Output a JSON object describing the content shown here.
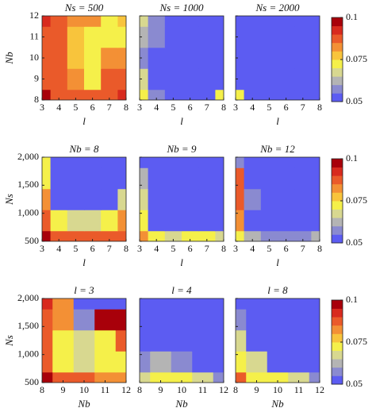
{
  "chart_data": [
    {
      "type": "contour",
      "title": "Ns = 500",
      "xlabel": "l",
      "ylabel": "Nb",
      "x": [
        3,
        4,
        5,
        6,
        7,
        8
      ],
      "y": [
        8,
        9,
        10,
        11,
        12
      ],
      "xlim": [
        3,
        8
      ],
      "ylim": [
        8,
        12
      ],
      "xticks": [
        3,
        4,
        5,
        6,
        7,
        8
      ],
      "yticks": [
        8,
        9,
        10,
        11,
        12
      ],
      "z": [
        [
          0.095,
          0.09,
          0.088,
          0.085,
          0.09,
          0.092
        ],
        [
          0.09,
          0.085,
          0.08,
          0.075,
          0.085,
          0.085
        ],
        [
          0.088,
          0.09,
          0.078,
          0.075,
          0.08,
          0.08
        ],
        [
          0.09,
          0.085,
          0.078,
          0.075,
          0.07,
          0.075
        ],
        [
          0.092,
          0.088,
          0.082,
          0.08,
          0.075,
          0.078
        ]
      ]
    },
    {
      "type": "contour",
      "title": "Ns = 1000",
      "xlabel": "l",
      "x": [
        3,
        4,
        5,
        6,
        7,
        8
      ],
      "y": [
        8,
        9,
        10,
        11,
        12
      ],
      "xlim": [
        3,
        8
      ],
      "ylim": [
        8,
        12
      ],
      "xticks": [
        3,
        4,
        5,
        6,
        7,
        8
      ],
      "yticks": [
        8,
        9,
        10,
        11,
        12
      ],
      "z": [
        [
          0.075,
          0.06,
          0.052,
          0.05,
          0.055,
          0.07
        ],
        [
          0.065,
          0.055,
          0.05,
          0.05,
          0.05,
          0.055
        ],
        [
          0.06,
          0.055,
          0.05,
          0.05,
          0.05,
          0.05
        ],
        [
          0.062,
          0.058,
          0.05,
          0.05,
          0.05,
          0.05
        ],
        [
          0.065,
          0.06,
          0.055,
          0.05,
          0.05,
          0.05
        ]
      ]
    },
    {
      "type": "contour",
      "title": "Ns = 2000",
      "xlabel": "l",
      "x": [
        3,
        4,
        5,
        6,
        7,
        8
      ],
      "y": [
        8,
        9,
        10,
        11,
        12
      ],
      "xlim": [
        3,
        8
      ],
      "ylim": [
        8,
        12
      ],
      "xticks": [
        3,
        4,
        5,
        6,
        7,
        8
      ],
      "yticks": [
        8,
        9,
        10,
        11,
        12
      ],
      "z": [
        [
          0.07,
          0.05,
          0.05,
          0.05,
          0.05,
          0.05
        ],
        [
          0.05,
          0.05,
          0.05,
          0.05,
          0.05,
          0.05
        ],
        [
          0.05,
          0.05,
          0.05,
          0.05,
          0.05,
          0.05
        ],
        [
          0.05,
          0.05,
          0.05,
          0.05,
          0.05,
          0.05
        ],
        [
          0.05,
          0.05,
          0.05,
          0.05,
          0.05,
          0.05
        ]
      ]
    },
    {
      "type": "contour",
      "title": "Nb = 8",
      "xlabel": "l",
      "ylabel": "Ns",
      "x": [
        3,
        4,
        5,
        6,
        7,
        8
      ],
      "y": [
        500,
        875,
        1250,
        1625,
        2000
      ],
      "xlim": [
        3,
        8
      ],
      "ylim": [
        500,
        2000
      ],
      "xticks": [
        3,
        4,
        5,
        6,
        7,
        8
      ],
      "yticks": [
        500,
        {
          "value": 1000,
          "label": "1,000"
        },
        {
          "value": 1500,
          "label": "1,500"
        },
        {
          "value": 2000,
          "label": "2,000"
        }
      ],
      "z": [
        [
          0.095,
          0.09,
          0.09,
          0.09,
          0.09,
          0.09
        ],
        [
          0.085,
          0.07,
          0.065,
          0.065,
          0.07,
          0.08
        ],
        [
          0.08,
          0.055,
          0.05,
          0.05,
          0.05,
          0.065
        ],
        [
          0.075,
          0.05,
          0.05,
          0.05,
          0.05,
          0.055
        ],
        [
          0.07,
          0.05,
          0.05,
          0.05,
          0.05,
          0.05
        ]
      ]
    },
    {
      "type": "contour",
      "title": "Nb = 9",
      "xlabel": "l",
      "x": [
        3,
        4,
        5,
        6,
        7,
        8
      ],
      "y": [
        500,
        875,
        1250,
        1625,
        2000
      ],
      "xlim": [
        3,
        8
      ],
      "ylim": [
        500,
        2000
      ],
      "xticks": [
        3,
        4,
        5,
        6,
        7,
        8
      ],
      "yticks": [
        500,
        1000,
        1500,
        2000
      ],
      "z": [
        [
          0.08,
          0.07,
          0.065,
          0.07,
          0.075,
          0.065
        ],
        [
          0.075,
          0.055,
          0.05,
          0.05,
          0.055,
          0.055
        ],
        [
          0.065,
          0.05,
          0.05,
          0.05,
          0.05,
          0.05
        ],
        [
          0.062,
          0.05,
          0.05,
          0.05,
          0.05,
          0.05
        ],
        [
          0.055,
          0.05,
          0.05,
          0.05,
          0.05,
          0.05
        ]
      ]
    },
    {
      "type": "contour",
      "title": "Nb = 12",
      "xlabel": "l",
      "x": [
        3,
        4,
        5,
        6,
        7,
        8
      ],
      "y": [
        500,
        875,
        1250,
        1625,
        2000
      ],
      "xlim": [
        3,
        8
      ],
      "ylim": [
        500,
        2000
      ],
      "xticks": [
        3,
        4,
        5,
        6,
        7,
        8
      ],
      "yticks": [
        500,
        1000,
        1500,
        2000
      ],
      "z": [
        [
          0.07,
          0.062,
          0.06,
          0.058,
          0.06,
          0.062
        ],
        [
          0.08,
          0.055,
          0.052,
          0.05,
          0.05,
          0.052
        ],
        [
          0.09,
          0.06,
          0.05,
          0.05,
          0.05,
          0.05
        ],
        [
          0.085,
          0.055,
          0.05,
          0.05,
          0.05,
          0.05
        ],
        [
          0.06,
          0.05,
          0.05,
          0.05,
          0.05,
          0.05
        ]
      ]
    },
    {
      "type": "contour",
      "title": "l = 3",
      "xlabel": "Nb",
      "ylabel": "Ns",
      "x": [
        8,
        9,
        10,
        11,
        12
      ],
      "y": [
        500,
        875,
        1250,
        1625,
        2000
      ],
      "xlim": [
        8,
        12
      ],
      "ylim": [
        500,
        2000
      ],
      "xticks": [
        8,
        9,
        10,
        11,
        12
      ],
      "yticks": [
        500,
        {
          "value": 1000,
          "label": "1,000"
        },
        {
          "value": 1500,
          "label": "1,500"
        },
        {
          "value": 2000,
          "label": "2,000"
        }
      ],
      "z": [
        [
          0.095,
          0.09,
          0.085,
          0.08,
          0.08
        ],
        [
          0.09,
          0.07,
          0.065,
          0.07,
          0.075
        ],
        [
          0.085,
          0.075,
          0.065,
          0.07,
          0.09
        ],
        [
          0.09,
          0.08,
          0.06,
          0.095,
          0.095
        ],
        [
          0.092,
          0.08,
          0.05,
          0.05,
          0.05
        ]
      ]
    },
    {
      "type": "contour",
      "title": "l = 4",
      "xlabel": "Nb",
      "x": [
        8,
        9,
        10,
        11,
        12
      ],
      "y": [
        500,
        875,
        1250,
        1625,
        2000
      ],
      "xlim": [
        8,
        12
      ],
      "ylim": [
        500,
        2000
      ],
      "xticks": [
        8,
        9,
        10,
        11,
        12
      ],
      "yticks": [
        500,
        1000,
        1500,
        2000
      ],
      "z": [
        [
          0.065,
          0.07,
          0.075,
          0.065,
          0.06
        ],
        [
          0.06,
          0.062,
          0.06,
          0.055,
          0.05
        ],
        [
          0.055,
          0.05,
          0.05,
          0.05,
          0.05
        ],
        [
          0.05,
          0.05,
          0.05,
          0.05,
          0.05
        ],
        [
          0.05,
          0.05,
          0.05,
          0.05,
          0.05
        ]
      ]
    },
    {
      "type": "contour",
      "title": "l = 8",
      "xlabel": "Nb",
      "x": [
        8,
        9,
        10,
        11,
        12
      ],
      "y": [
        500,
        875,
        1250,
        1625,
        2000
      ],
      "xlim": [
        8,
        12
      ],
      "ylim": [
        500,
        2000
      ],
      "xticks": [
        8,
        9,
        10,
        11,
        12
      ],
      "yticks": [
        500,
        1000,
        1500,
        2000
      ],
      "z": [
        [
          0.085,
          0.075,
          0.07,
          0.065,
          0.06
        ],
        [
          0.075,
          0.065,
          0.055,
          0.05,
          0.05
        ],
        [
          0.065,
          0.055,
          0.05,
          0.05,
          0.05
        ],
        [
          0.058,
          0.05,
          0.05,
          0.05,
          0.05
        ],
        [
          0.055,
          0.05,
          0.05,
          0.05,
          0.05
        ]
      ]
    },
    {
      "type": "colorbar",
      "ylim": [
        0.05,
        0.1
      ],
      "yticks": [
        0.05,
        0.075,
        0.1
      ],
      "colors": [
        "#5c5cf2",
        "#8a8ad0",
        "#b4b4b4",
        "#d8d890",
        "#f5f04a",
        "#f8c43c",
        "#f39035",
        "#ea5a2a",
        "#d82a1e",
        "#a8000a"
      ]
    },
    {
      "type": "colorbar",
      "ylim": [
        0.05,
        0.1
      ],
      "yticks": [
        0.05,
        0.075,
        0.1
      ],
      "colors": [
        "#5c5cf2",
        "#8a8ad0",
        "#b4b4b4",
        "#d8d890",
        "#f5f04a",
        "#f8c43c",
        "#f39035",
        "#ea5a2a",
        "#d82a1e",
        "#a8000a"
      ]
    },
    {
      "type": "colorbar",
      "ylim": [
        0.05,
        0.1
      ],
      "yticks": [
        0.05,
        0.075,
        0.1
      ],
      "colors": [
        "#5c5cf2",
        "#8a8ad0",
        "#b4b4b4",
        "#d8d890",
        "#f5f04a",
        "#f8c43c",
        "#f39035",
        "#ea5a2a",
        "#d82a1e",
        "#a8000a"
      ]
    }
  ]
}
